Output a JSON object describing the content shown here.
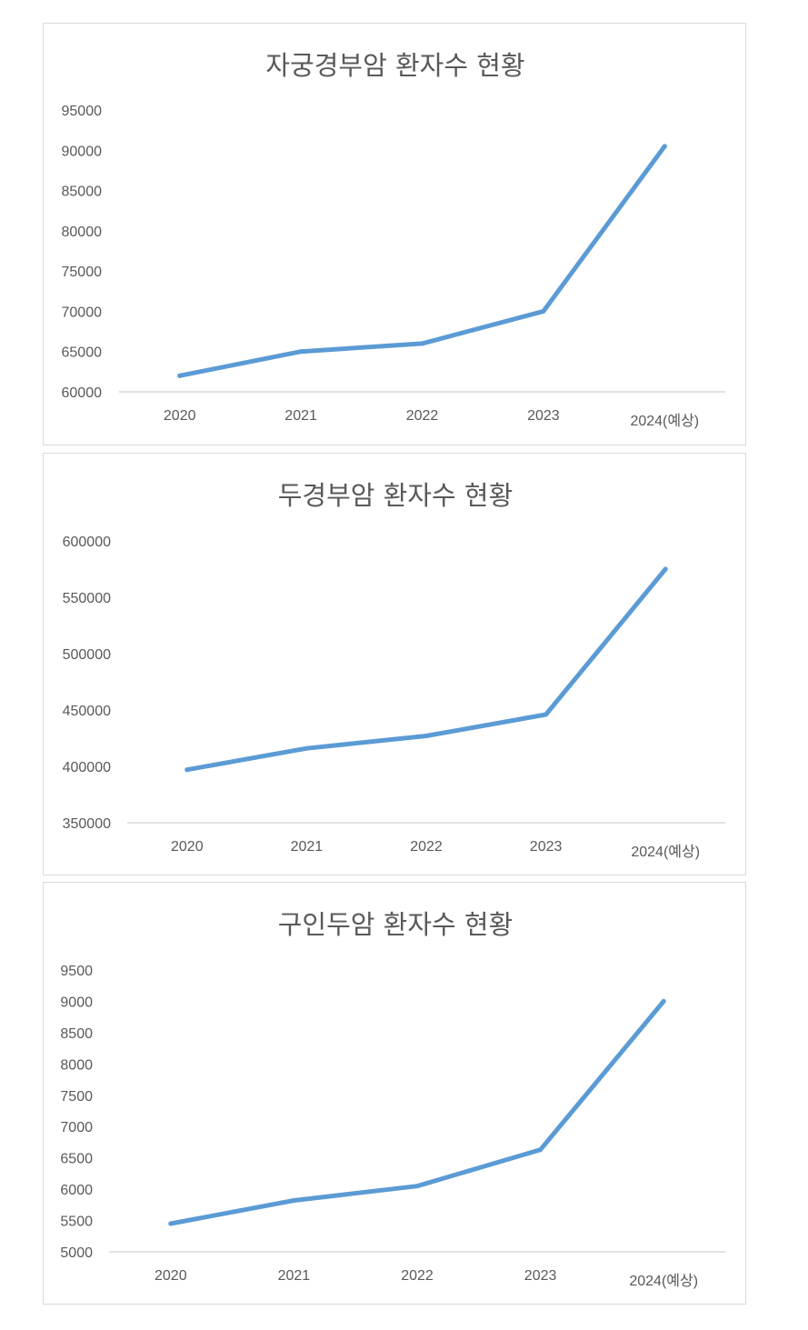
{
  "colors": {
    "line": "#5b9bd5",
    "axis": "#d9d9d9",
    "text": "#595959"
  },
  "chart_data": [
    {
      "type": "line",
      "title": "자궁경부암 환자수 현황",
      "categories": [
        "2020",
        "2021",
        "2022",
        "2023",
        "2024(예상)"
      ],
      "series": [
        {
          "values": [
            62000,
            65000,
            66000,
            70000,
            90500
          ]
        }
      ],
      "ylim": [
        60000,
        95000
      ],
      "yticks": [
        60000,
        65000,
        70000,
        75000,
        80000,
        85000,
        90000,
        95000
      ],
      "ytick_labels": [
        "60000",
        "65000",
        "70000",
        "75000",
        "80000",
        "85000",
        "90000",
        "95000"
      ],
      "xlabel": "",
      "ylabel": "",
      "grid": false,
      "legend": false
    },
    {
      "type": "line",
      "title": "두경부암 환자수 현황",
      "categories": [
        "2020",
        "2021",
        "2022",
        "2023",
        "2024(예상)"
      ],
      "series": [
        {
          "values": [
            397000,
            416000,
            427000,
            446000,
            575000
          ]
        }
      ],
      "ylim": [
        350000,
        600000
      ],
      "yticks": [
        350000,
        400000,
        450000,
        500000,
        550000,
        600000
      ],
      "ytick_labels": [
        "350000",
        "400000",
        "450000",
        "500000",
        "550000",
        "600000"
      ],
      "xlabel": "",
      "ylabel": "",
      "grid": false,
      "legend": false
    },
    {
      "type": "line",
      "title": "구인두암 환자수 현황",
      "categories": [
        "2020",
        "2021",
        "2022",
        "2023",
        "2024(예상)"
      ],
      "series": [
        {
          "values": [
            5450,
            5820,
            6050,
            6630,
            9000
          ]
        }
      ],
      "ylim": [
        5000,
        9500
      ],
      "yticks": [
        5000,
        5500,
        6000,
        6500,
        7000,
        7500,
        8000,
        8500,
        9000,
        9500
      ],
      "ytick_labels": [
        "5000",
        "5500",
        "6000",
        "6500",
        "7000",
        "7500",
        "8000",
        "8500",
        "9000",
        "9500"
      ],
      "xlabel": "",
      "ylabel": "",
      "grid": false,
      "legend": false
    }
  ]
}
